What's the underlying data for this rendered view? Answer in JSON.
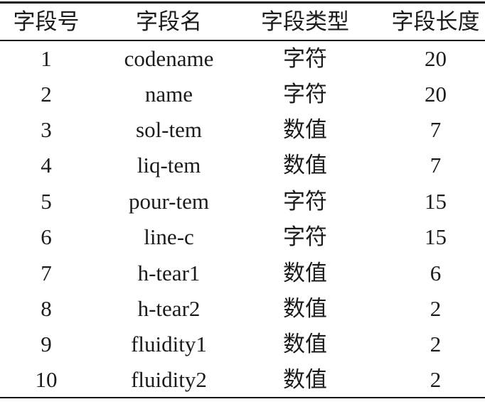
{
  "page": {
    "background_color": "#ffffff",
    "text_color": "#1b1b1b",
    "rule_color": "#151515"
  },
  "table": {
    "headers": [
      "字段号",
      "字段名",
      "字段类型",
      "字段长度"
    ],
    "rows": [
      [
        "1",
        "codename",
        "字符",
        "20"
      ],
      [
        "2",
        "name",
        "字符",
        "20"
      ],
      [
        "3",
        "sol-tem",
        "数值",
        "7"
      ],
      [
        "4",
        "liq-tem",
        "数值",
        "7"
      ],
      [
        "5",
        "pour-tem",
        "字符",
        "15"
      ],
      [
        "6",
        "line-c",
        "字符",
        "15"
      ],
      [
        "7",
        "h-tear1",
        "数值",
        "6"
      ],
      [
        "8",
        "h-tear2",
        "数值",
        "2"
      ],
      [
        "9",
        "fluidity1",
        "数值",
        "2"
      ],
      [
        "10",
        "fluidity2",
        "数值",
        "2"
      ]
    ]
  },
  "chart_data": {
    "type": "table",
    "columns": [
      "字段号",
      "字段名",
      "字段类型",
      "字段长度"
    ],
    "rows": [
      [
        "1",
        "codename",
        "字符",
        "20"
      ],
      [
        "2",
        "name",
        "字符",
        "20"
      ],
      [
        "3",
        "sol-tem",
        "数值",
        "7"
      ],
      [
        "4",
        "liq-tem",
        "数值",
        "7"
      ],
      [
        "5",
        "pour-tem",
        "字符",
        "15"
      ],
      [
        "6",
        "line-c",
        "字符",
        "15"
      ],
      [
        "7",
        "h-tear1",
        "数值",
        "6"
      ],
      [
        "8",
        "h-tear2",
        "数值",
        "2"
      ],
      [
        "9",
        "fluidity1",
        "数值",
        "2"
      ],
      [
        "10",
        "fluidity2",
        "数值",
        "2"
      ]
    ]
  }
}
